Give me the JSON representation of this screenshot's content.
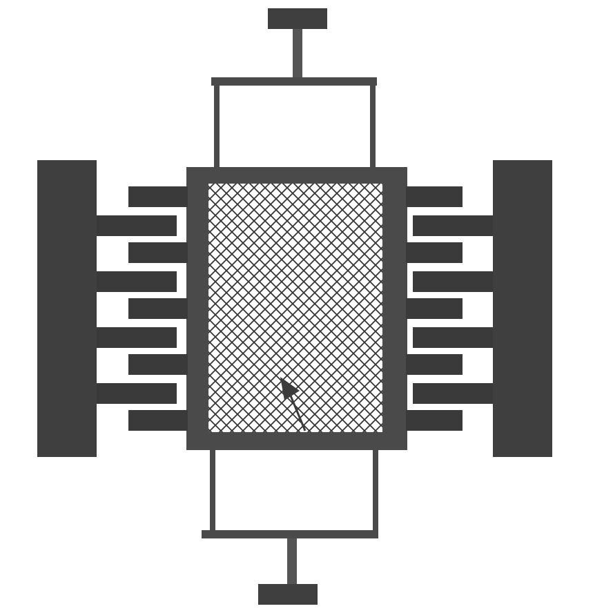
{
  "diagram": {
    "colors": {
      "background": "#ffffff",
      "dark_fill": "#3f3f3f",
      "frame_fill": "#4a4a4a",
      "finger_fill": "#3a3a3a",
      "stem_fill": "#555555",
      "line": "#4a4a4a",
      "mesh_line": "#333333",
      "arrow": "#3b3b3b"
    },
    "components": {
      "top_anchor_pad": "top-anchor-pad",
      "bottom_anchor_pad": "bottom-anchor-pad",
      "left_electrode": "left-electrode-pad",
      "right_electrode": "right-electrode-pad",
      "proof_mass": "proof-mass-frame",
      "mesh": "perforated-mesh",
      "pointer": "pointer-arrow"
    },
    "comb_fingers": {
      "left_fixed_count": 4,
      "left_moving_count": 5,
      "right_fixed_count": 4,
      "right_moving_count": 5
    }
  }
}
